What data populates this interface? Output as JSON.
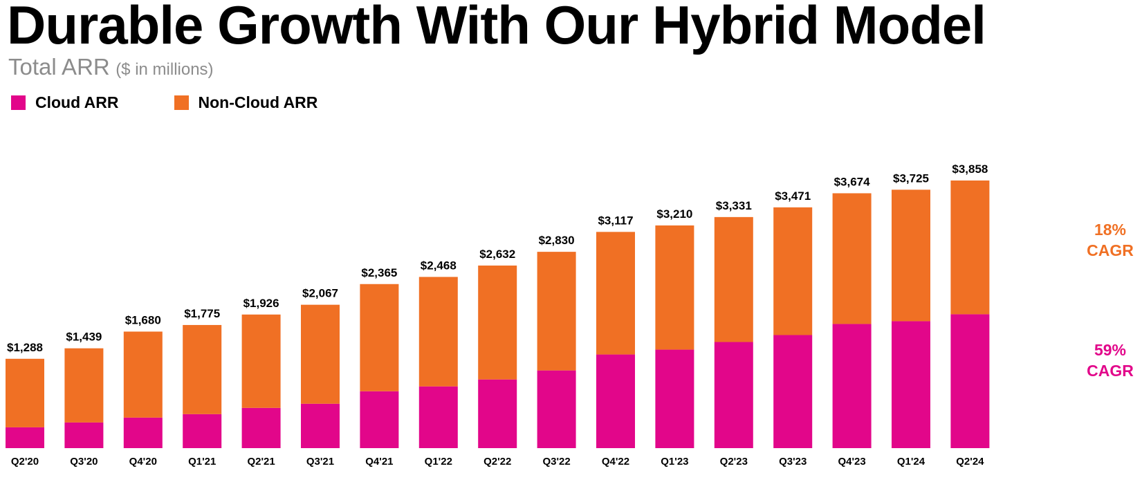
{
  "title": "Durable Growth With Our Hybrid Model",
  "subtitle": "Total ARR",
  "unit_note": "($ in millions)",
  "colors": {
    "cloud": "#e2068a",
    "non_cloud": "#f07024"
  },
  "legend": [
    {
      "label": "Cloud ARR",
      "color": "#e2068a"
    },
    {
      "label": "Non-Cloud ARR",
      "color": "#f07024"
    }
  ],
  "annotations": {
    "non_cloud_cagr": {
      "pct": "18%",
      "label": "CAGR"
    },
    "cloud_cagr": {
      "pct": "59%",
      "label": "CAGR"
    }
  },
  "chart_data": {
    "type": "bar",
    "stacked": true,
    "title": "Durable Growth With Our Hybrid Model",
    "subtitle": "Total ARR ($ in millions)",
    "categories": [
      "Q2'20",
      "Q3'20",
      "Q4'20",
      "Q1'21",
      "Q2'21",
      "Q3'21",
      "Q4'21",
      "Q1'22",
      "Q2'22",
      "Q3'22",
      "Q4'22",
      "Q1'23",
      "Q2'23",
      "Q3'23",
      "Q4'23",
      "Q1'24",
      "Q2'24"
    ],
    "totals": [
      1288,
      1439,
      1680,
      1775,
      1926,
      2067,
      2365,
      2468,
      2632,
      2830,
      3117,
      3210,
      3331,
      3471,
      3674,
      3725,
      3858
    ],
    "total_labels": [
      "$1,288",
      "$1,439",
      "$1,680",
      "$1,775",
      "$1,926",
      "$2,067",
      "$2,365",
      "$2,468",
      "$2,632",
      "$2,830",
      "$3,117",
      "$3,210",
      "$3,331",
      "$3,471",
      "$3,674",
      "$3,725",
      "$3,858"
    ],
    "series": [
      {
        "name": "Cloud ARR",
        "values": [
          300,
          370,
          440,
          490,
          580,
          640,
          820,
          890,
          990,
          1120,
          1350,
          1420,
          1530,
          1630,
          1790,
          1830,
          1930
        ]
      },
      {
        "name": "Non-Cloud ARR",
        "values": [
          988,
          1069,
          1240,
          1285,
          1346,
          1427,
          1545,
          1578,
          1642,
          1710,
          1767,
          1790,
          1801,
          1841,
          1884,
          1895,
          1928
        ]
      }
    ],
    "ylim": [
      0,
      3858
    ],
    "grid": false,
    "legend_position": "top-left"
  }
}
